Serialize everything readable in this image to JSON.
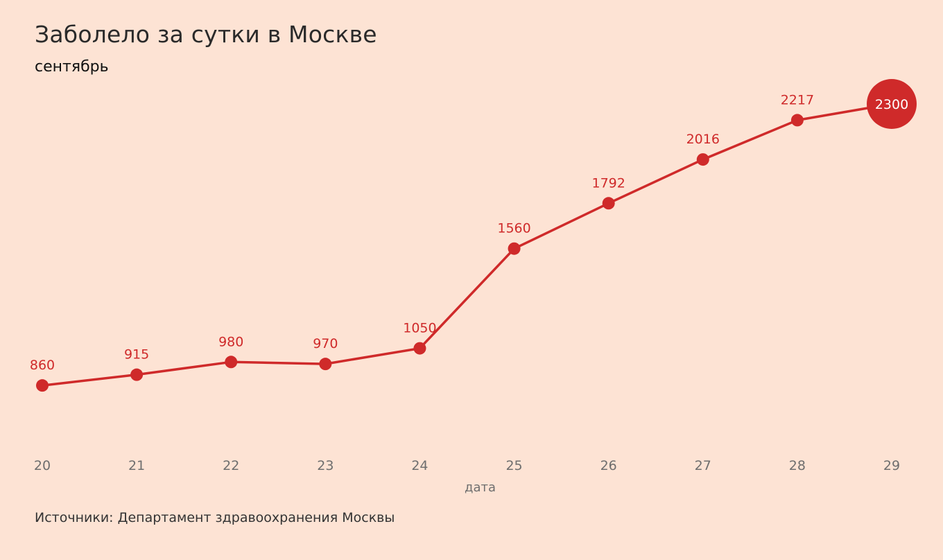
{
  "header": {
    "title": "Заболело за сутки в Москве",
    "subtitle": "сентябрь"
  },
  "footer": {
    "source": "Источники: Департамент здравоохранения Москвы"
  },
  "chart_data": {
    "type": "line",
    "title": "Заболело за сутки в Москве",
    "subtitle": "сентябрь",
    "xlabel": "дата",
    "ylabel": "",
    "x": [
      "20",
      "21",
      "22",
      "23",
      "24",
      "25",
      "26",
      "27",
      "28",
      "29"
    ],
    "series": [
      {
        "values": [
          860,
          915,
          980,
          970,
          1050,
          1560,
          1792,
          2016,
          2217,
          2300
        ]
      }
    ],
    "ylim": [
      740,
      2300
    ],
    "grid": false,
    "legend": "none",
    "highlight_last_point": true,
    "colors": {
      "line": "#cf2a2a",
      "background": "#fde3d4",
      "tick_text": "#6e6e6e"
    }
  }
}
